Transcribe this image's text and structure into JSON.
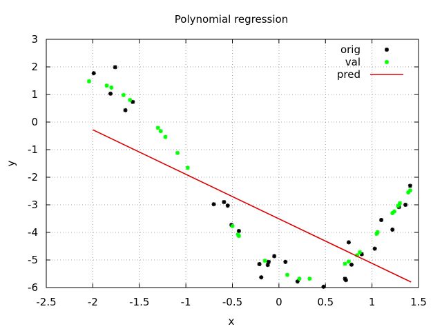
{
  "chart_data": {
    "type": "scatter",
    "title": "Polynomial regression",
    "xlabel": "x",
    "ylabel": "y",
    "xlim": [
      -2.5,
      1.5
    ],
    "ylim": [
      -6,
      3
    ],
    "xticks": [
      -2.5,
      -2,
      -1.5,
      -1,
      -0.5,
      0,
      0.5,
      1,
      1.5
    ],
    "xtick_labels": [
      "-2.5",
      "-2",
      "-1.5",
      "-1",
      "-0.5",
      "0",
      "0.5",
      "1",
      "1.5"
    ],
    "yticks": [
      -6,
      -5,
      -4,
      -3,
      -2,
      -1,
      0,
      1,
      2,
      3
    ],
    "ytick_labels": [
      "-6",
      "-5",
      "-4",
      "-3",
      "-2",
      "-1",
      "0",
      "1",
      "2",
      "3"
    ],
    "grid": true,
    "legend_position": "top-right",
    "series": [
      {
        "name": "orig",
        "kind": "points",
        "color": "#000000",
        "points": [
          [
            -1.99,
            1.77
          ],
          [
            -1.81,
            1.03
          ],
          [
            -1.76,
            1.99
          ],
          [
            -1.65,
            0.43
          ],
          [
            -1.57,
            0.73
          ],
          [
            -0.7,
            -2.98
          ],
          [
            -0.59,
            -2.9
          ],
          [
            -0.55,
            -3.03
          ],
          [
            -0.51,
            -3.73
          ],
          [
            -0.43,
            -3.95
          ],
          [
            -0.21,
            -5.15
          ],
          [
            -0.19,
            -5.63
          ],
          [
            -0.12,
            -5.18
          ],
          [
            -0.11,
            -5.07
          ],
          [
            -0.05,
            -4.86
          ],
          [
            0.07,
            -5.07
          ],
          [
            0.2,
            -5.78
          ],
          [
            0.48,
            -5.97
          ],
          [
            0.71,
            -5.68
          ],
          [
            0.72,
            -5.73
          ],
          [
            0.75,
            -4.36
          ],
          [
            0.78,
            -5.17
          ],
          [
            0.89,
            -4.79
          ],
          [
            1.03,
            -4.59
          ],
          [
            1.1,
            -3.55
          ],
          [
            1.22,
            -3.9
          ],
          [
            1.29,
            -3.08
          ],
          [
            1.36,
            -3.0
          ],
          [
            1.41,
            -2.31
          ]
        ]
      },
      {
        "name": "val",
        "kind": "points",
        "color": "#00ff00",
        "points": [
          [
            -2.04,
            1.48
          ],
          [
            -1.85,
            1.32
          ],
          [
            -1.8,
            1.25
          ],
          [
            -1.67,
            0.98
          ],
          [
            -1.6,
            0.8
          ],
          [
            -1.3,
            -0.21
          ],
          [
            -1.27,
            -0.33
          ],
          [
            -1.22,
            -0.54
          ],
          [
            -1.09,
            -1.12
          ],
          [
            -0.98,
            -1.66
          ],
          [
            -0.5,
            -3.77
          ],
          [
            -0.44,
            -4.08
          ],
          [
            -0.43,
            -4.13
          ],
          [
            -0.15,
            -5.03
          ],
          [
            0.09,
            -5.54
          ],
          [
            0.22,
            -5.68
          ],
          [
            0.33,
            -5.68
          ],
          [
            0.71,
            -5.14
          ],
          [
            0.75,
            -5.06
          ],
          [
            0.84,
            -4.83
          ],
          [
            0.87,
            -4.72
          ],
          [
            1.05,
            -4.05
          ],
          [
            1.06,
            -3.99
          ],
          [
            1.22,
            -3.3
          ],
          [
            1.24,
            -3.24
          ],
          [
            1.28,
            -3.04
          ],
          [
            1.3,
            -2.94
          ],
          [
            1.39,
            -2.55
          ],
          [
            1.41,
            -2.48
          ]
        ]
      },
      {
        "name": "pred",
        "kind": "line",
        "color": "#dd0000",
        "points": [
          [
            -2.0,
            -0.28
          ],
          [
            1.42,
            -5.8
          ]
        ]
      }
    ]
  }
}
